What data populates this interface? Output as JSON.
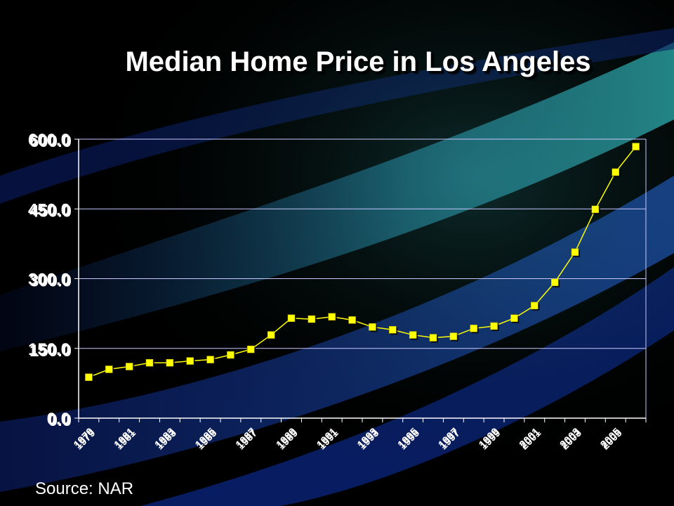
{
  "title": "Median Home Price in Los Angeles",
  "source": "Source: NAR",
  "chart_data": {
    "type": "line",
    "title": "Median Home Price in Los Angeles",
    "xlabel": "",
    "ylabel": "",
    "ylim": [
      0,
      600
    ],
    "yticks": [
      "0.0",
      "150.0",
      "300.0",
      "450.0",
      "600.0"
    ],
    "x_tick_labels": [
      "1979",
      "1981",
      "1983",
      "1985",
      "1987",
      "1989",
      "1991",
      "1993",
      "1995",
      "1997",
      "1999",
      "2001",
      "2003",
      "2005"
    ],
    "x": [
      1979,
      1980,
      1981,
      1982,
      1983,
      1984,
      1985,
      1986,
      1987,
      1988,
      1989,
      1990,
      1991,
      1992,
      1993,
      1994,
      1995,
      1996,
      1997,
      1998,
      1999,
      2000,
      2001,
      2002,
      2003,
      2004,
      2005,
      2006
    ],
    "series": [
      {
        "values": [
          88,
          105,
          111,
          119,
          119,
          123,
          126,
          136,
          148,
          179,
          215,
          213,
          218,
          211,
          196,
          190,
          179,
          173,
          176,
          193,
          198,
          215,
          242,
          292,
          357,
          449,
          529,
          584
        ]
      }
    ],
    "grid": true,
    "line_color": "#ffff00",
    "marker_color": "#ffff00",
    "grid_color": "#c8c8ff"
  }
}
